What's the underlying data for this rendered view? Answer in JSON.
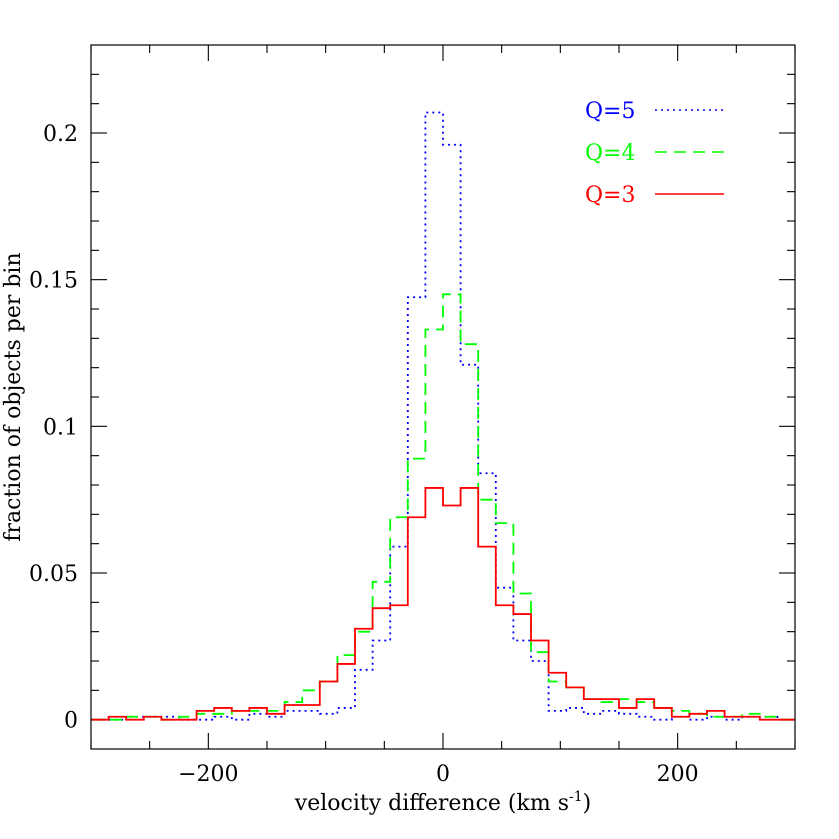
{
  "chart_data": {
    "type": "line",
    "style": "step-histogram",
    "xlabel": "velocity difference (km s",
    "xlabel_superscript": "-1",
    "xlabel_suffix": ")",
    "ylabel": "fraction of objects per bin",
    "xlim": [
      -300,
      300
    ],
    "ylim": [
      -0.01,
      0.23
    ],
    "x_ticks": [
      -200,
      0,
      200
    ],
    "x_tick_labels": [
      "−200",
      "0",
      "200"
    ],
    "y_ticks": [
      0,
      0.05,
      0.1,
      0.15,
      0.2
    ],
    "y_tick_labels": [
      "0",
      "0.05",
      "0.1",
      "0.15",
      "0.2"
    ],
    "grid": false,
    "legend_position": "top-right",
    "bin_edges": [
      -300,
      -285,
      -270,
      -255,
      -240,
      -225,
      -210,
      -195,
      -180,
      -165,
      -150,
      -135,
      -120,
      -105,
      -90,
      -75,
      -60,
      -45,
      -30,
      -15,
      0,
      15,
      30,
      45,
      60,
      75,
      90,
      105,
      120,
      135,
      150,
      165,
      180,
      195,
      210,
      225,
      240,
      255,
      270,
      285,
      300
    ],
    "series": [
      {
        "name": "Q=5",
        "color": "#0000ff",
        "dash": "dotted",
        "values": [
          0.0,
          0.0,
          0.001,
          0.001,
          0.001,
          0.0,
          0.0,
          0.001,
          0.0,
          0.002,
          0.001,
          0.003,
          0.003,
          0.002,
          0.004,
          0.017,
          0.027,
          0.059,
          0.144,
          0.207,
          0.196,
          0.121,
          0.084,
          0.045,
          0.027,
          0.02,
          0.003,
          0.004,
          0.002,
          0.003,
          0.002,
          0.001,
          0.0,
          0.001,
          0.0,
          0.001,
          0.0,
          0.001,
          0.001,
          0.0
        ]
      },
      {
        "name": "Q=4",
        "color": "#00ff00",
        "dash": "dashed",
        "values": [
          0.0,
          0.0,
          0.001,
          0.001,
          0.0,
          0.001,
          0.002,
          0.002,
          0.003,
          0.003,
          0.003,
          0.006,
          0.01,
          0.013,
          0.022,
          0.03,
          0.047,
          0.069,
          0.089,
          0.133,
          0.145,
          0.128,
          0.075,
          0.067,
          0.043,
          0.023,
          0.013,
          0.011,
          0.007,
          0.006,
          0.007,
          0.006,
          0.004,
          0.003,
          0.002,
          0.001,
          0.001,
          0.002,
          0.001,
          0.0
        ]
      },
      {
        "name": "Q=3",
        "color": "#ff0000",
        "dash": "solid",
        "values": [
          0.0,
          0.001,
          0.0,
          0.001,
          0.0,
          0.0,
          0.003,
          0.004,
          0.003,
          0.004,
          0.002,
          0.005,
          0.005,
          0.013,
          0.019,
          0.031,
          0.038,
          0.039,
          0.069,
          0.079,
          0.073,
          0.079,
          0.059,
          0.039,
          0.036,
          0.027,
          0.016,
          0.011,
          0.007,
          0.007,
          0.004,
          0.007,
          0.004,
          0.001,
          0.002,
          0.003,
          0.001,
          0.001,
          0.0,
          0.0
        ]
      }
    ]
  }
}
